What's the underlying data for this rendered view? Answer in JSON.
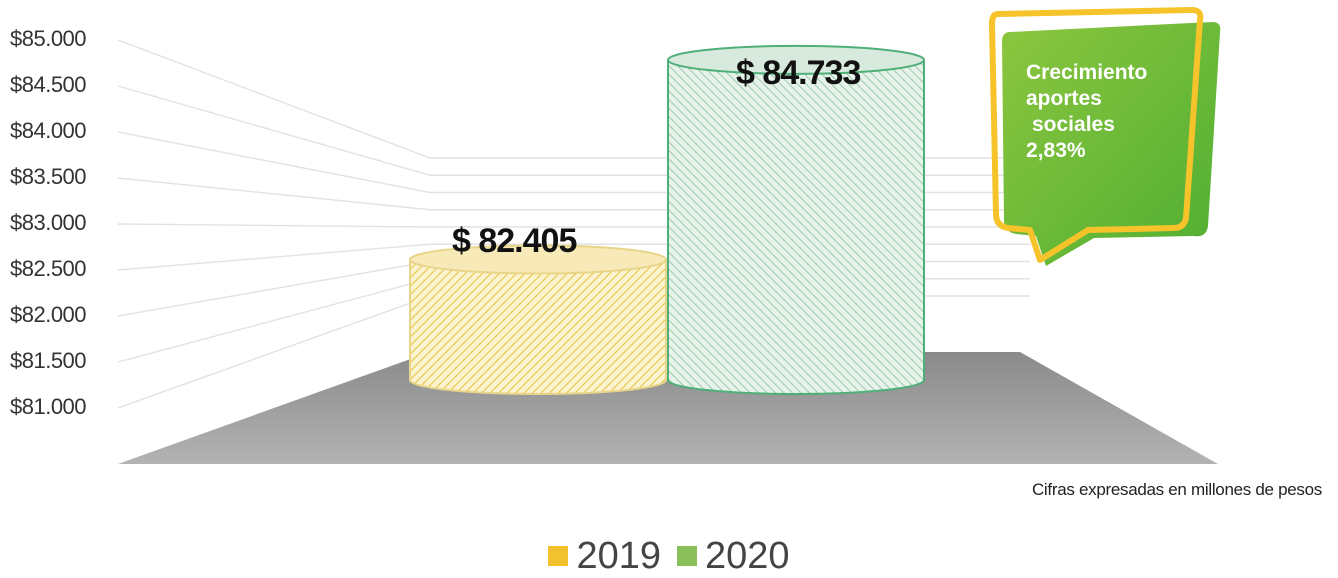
{
  "chart_data": {
    "type": "bar",
    "style": "3d-cylinder",
    "categories": [
      "2019",
      "2020"
    ],
    "values": [
      82405,
      84733
    ],
    "value_labels": [
      "$ 82.405",
      "$ 84.733"
    ],
    "y_ticks": [
      "$85.000",
      "$84.500",
      "$84.000",
      "$83.500",
      "$83.000",
      "$82.500",
      "$82.000",
      "$81.500",
      "$81.000"
    ],
    "ylim": [
      81000,
      85000
    ],
    "grid": true,
    "colors": {
      "2019": "#f2c12e",
      "2020": "#8bbf5a"
    },
    "legend": {
      "placement": "bottom",
      "items": [
        "2019",
        "2020"
      ]
    },
    "annotation": [
      "Crecimiento",
      "aportes",
      "sociales",
      "2,83%"
    ],
    "note": "Cifras expresadas en millones de pesos"
  }
}
